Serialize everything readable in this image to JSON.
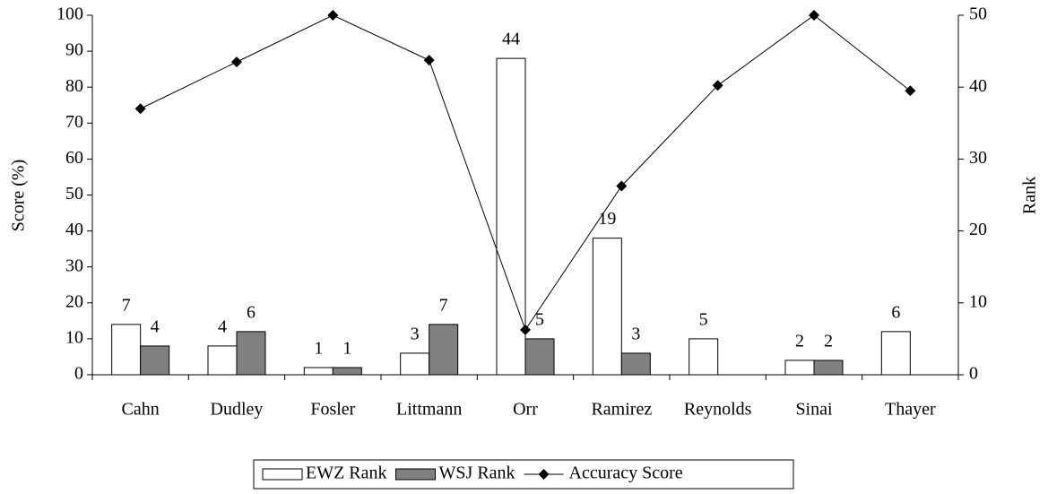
{
  "chart_data": {
    "type": "bar-line",
    "ylabel": "Score (%)",
    "y2label": "Rank",
    "categories": [
      "Cahn",
      "Dudley",
      "Fosler",
      "Littmann",
      "Orr",
      "Ramirez",
      "Reynolds",
      "Sinai",
      "Thayer"
    ],
    "series": [
      {
        "name": "EWZ Rank",
        "type": "bar",
        "axis": "y2",
        "color": "#ffffff",
        "values": [
          7,
          4,
          1,
          3,
          44,
          19,
          5,
          2,
          6
        ]
      },
      {
        "name": "WSJ Rank",
        "type": "bar",
        "axis": "y2",
        "color": "#808080",
        "values": [
          4,
          6,
          1,
          7,
          5,
          3,
          null,
          2,
          null
        ]
      },
      {
        "name": "Accuracy Score",
        "type": "line",
        "axis": "y",
        "color": "#000000",
        "values": [
          74,
          87,
          100,
          87.5,
          12.5,
          52.5,
          80.5,
          100,
          79
        ]
      }
    ],
    "ylim": [
      0,
      100
    ],
    "yticks": [
      0,
      10,
      20,
      30,
      40,
      50,
      60,
      70,
      80,
      90,
      100
    ],
    "y2lim": [
      0,
      50
    ],
    "y2ticks": [
      0,
      10,
      20,
      30,
      40,
      50
    ],
    "legend": "bottom"
  }
}
